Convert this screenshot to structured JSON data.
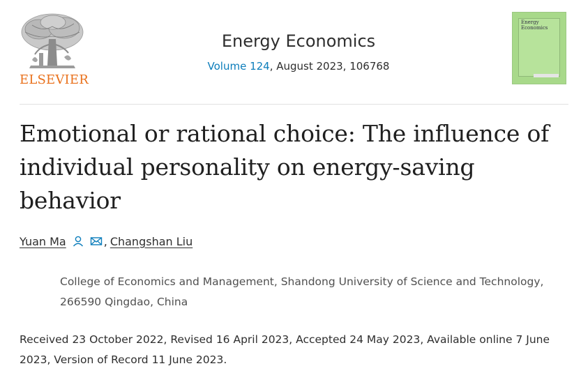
{
  "header": {
    "publisher": "ELSEVIER",
    "journal_title": "Energy Economics",
    "volume_link": "Volume 124",
    "issue_details": ", August 2023, 106768",
    "cover": {
      "title": "Energy Economics",
      "color": "#a8d98a"
    }
  },
  "article": {
    "title": "Emotional or rational choice: The influence of individual personality on energy-saving behavior",
    "authors": [
      {
        "name": "Yuan Ma",
        "icons": [
          "person-icon",
          "envelope-icon"
        ]
      },
      {
        "name": "Changshan Liu"
      }
    ],
    "author_separator": ",",
    "affiliation": "College of Economics and Management, Shandong University of Science and Technology, 266590 Qingdao, China",
    "dates": "Received 23 October 2022, Revised 16 April 2023, Accepted 24 May 2023, Available online 7 June 2023, Version of Record 11 June 2023."
  },
  "colors": {
    "link": "#0c7dbb",
    "publisher_orange": "#e9711c",
    "text": "#2e2e2e"
  }
}
